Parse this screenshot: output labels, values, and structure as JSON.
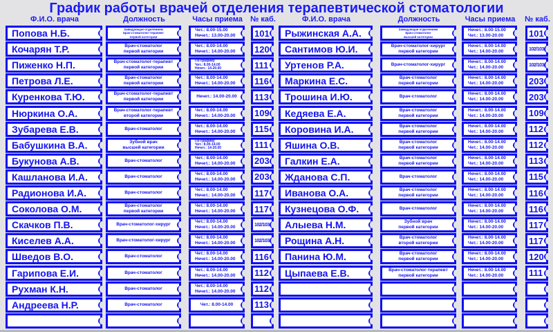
{
  "title": "График работы врачей отделения терапевтической стоматологии",
  "colors": {
    "accent": "#1010f0",
    "background": "#e3e3e6"
  },
  "headers": {
    "name": "Ф.И.О. врача",
    "position": "Должность",
    "hours": "Часы приема",
    "room": "№ каб."
  },
  "left": [
    {
      "name": "Попова Н.Б.",
      "position": [
        "Заведующая отделением",
        "врач-стоматолог-терапевт",
        "первой категории"
      ],
      "hours": [
        "Чет.: 8.00-15.00",
        "Нечет.: 13.00-20.00"
      ],
      "room": "101"
    },
    {
      "name": "Кочарян Т.Р.",
      "position": [
        "Врач-стоматолог",
        "первой категории"
      ],
      "hours": [
        "Чет.: 8.00-14.00",
        "Нечет.: 14.00-20.00"
      ],
      "room": "120"
    },
    {
      "name": "Пиженко Н.П.",
      "position": [
        "Врач-стоматолог-терапевт",
        "первой категории"
      ],
      "hours": [
        "По графику",
        "Чет.: 8.00-14.00",
        "Нечет.: 14-20.00"
      ],
      "room": "111"
    },
    {
      "name": "Петрова Л.Е.",
      "position": [
        "Врач-стоматолог",
        "первой категории"
      ],
      "hours": [
        "Чет.: 8.00-14.00",
        "Нечет.: 14.00-20.00"
      ],
      "room": "116"
    },
    {
      "name": "Куренкова Т.Ю.",
      "position": [
        "Врач-стоматолог-терапевт",
        "первой категории"
      ],
      "hours": [
        "Нечет.: 14.00-20.00"
      ],
      "room": "113"
    },
    {
      "name": "Нюркина О.А.",
      "position": [
        "Врач-стоматолог-терапевт",
        "второй категории"
      ],
      "hours": [
        "Чет.: 8.00-14.00",
        "Нечет.: 14.00-20.00"
      ],
      "room": "109"
    },
    {
      "name": "Зубарева Е.В.",
      "position": [
        "Врач-стоматолог"
      ],
      "hours": [
        "Чет.: 8.00-14.00",
        "Нечет.: 14.00-20.00"
      ],
      "room": "115"
    },
    {
      "name": "Бабушкина В.А.",
      "position": [
        "Зубной врач",
        "высшей категории"
      ],
      "hours": [
        "По графику",
        "Чет.: 8.00-14.00",
        "Нечет.: 14-20.00"
      ],
      "room": "111"
    },
    {
      "name": "Букунова А.В.",
      "position": [
        "Врач-стоматолог"
      ],
      "hours": [
        "Чет.: 8.00-14.00",
        "Нечет.: 14.00-20.00"
      ],
      "room": "203"
    },
    {
      "name": "Кашланова И.А.",
      "position": [
        "Врач-стоматолог"
      ],
      "hours": [
        "Чет.: 8.00-14.00",
        "Нечет.: 14.00-20.00"
      ],
      "room": "203"
    },
    {
      "name": "Радионова И.А.",
      "position": [
        "Врач-стоматолог"
      ],
      "hours": [
        "Чет.: 8.00-14.00",
        "Нечет.: 14.00-20.00"
      ],
      "room": "117"
    },
    {
      "name": "Соколова О.М.",
      "position": [
        "Врач-стоматолог",
        "первой категории"
      ],
      "hours": [
        "Чет.: 8.00-14.00",
        "Нечет.: 14.00-20.00"
      ],
      "room": "117"
    },
    {
      "name": "Скачков П.В.",
      "position": [
        "Врач-стоматолог-хирург"
      ],
      "hours": [
        "Чет.: 8.00-14.00",
        "Нечет.: 14.00-20.00"
      ],
      "room": "102/103"
    },
    {
      "name": "Киселев А.А.",
      "position": [
        "Врач-стоматолог-хирург"
      ],
      "hours": [
        "Чет.: 8.00-14.00",
        "Нечет.: 14.00-20.00"
      ],
      "room": "102/103"
    },
    {
      "name": "Шведов В.О.",
      "position": [
        "Врач-стоматолог"
      ],
      "hours": [
        "Чет.: 8.00-14.00",
        "Нечет.: 14.00-20.00"
      ],
      "room": "116"
    },
    {
      "name": "Гарипова Е.И.",
      "position": [
        "Врач-стоматолог"
      ],
      "hours": [
        "Чет.: 8.00-14.00",
        "Нечет.: 14.00-20.00"
      ],
      "room": "112"
    },
    {
      "name": "Рухман К.Н.",
      "position": [
        "Врач-стоматолог"
      ],
      "hours": [
        "Чет.: 8.00-14.00",
        "Нечет.: 14.00-20.00"
      ],
      "room": "112"
    },
    {
      "name": "Андреева Н.Р.",
      "position": [
        "Врач-стоматолог"
      ],
      "hours": [
        "Чет.: 8.00-14.00"
      ],
      "room": "113"
    },
    {
      "name": "",
      "position": [],
      "hours": [],
      "room": ""
    }
  ],
  "right": [
    {
      "name": "Рыжинская А.А.",
      "position": [
        "Заведующая отделением",
        "врач-стоматолог",
        "высшей категории"
      ],
      "hours": [
        "Нечет.: 8.00-15.00",
        "Чет.: 13.00-20.00"
      ],
      "room": "101"
    },
    {
      "name": "Сантимов Ю.И.",
      "position": [
        "Врач-стоматолог-хирург",
        "первой категории"
      ],
      "hours": [
        "Нечет.: 8.00-14.00",
        "Чет.: 14.00-20.00"
      ],
      "room": "102/103"
    },
    {
      "name": "Уртенов Р.А.",
      "position": [
        "Врач-стоматолог-хирург"
      ],
      "hours": [
        "Нечет.: 8.00-14.00",
        "Чет.: 14.00-20.00"
      ],
      "room": "102/103"
    },
    {
      "name": "Маркина Е.С.",
      "position": [
        "Врач-стоматолог",
        "первой категории"
      ],
      "hours": [
        "Нечет.: 8.00-14.00",
        "Чет.: 14.00-20.00"
      ],
      "room": "203"
    },
    {
      "name": "Трошина И.Ю.",
      "position": [
        "Врач-стоматолог"
      ],
      "hours": [
        "Нечет.: 8.00-14.00",
        "Чет.: 14.00-20.00"
      ],
      "room": "203"
    },
    {
      "name": "Кедяева Е.А.",
      "position": [
        "Врач-стоматолог",
        "первой категории"
      ],
      "hours": [
        "Нечет.: 8.00-14.00",
        "Чет.: 14.00-20.00"
      ],
      "room": "109"
    },
    {
      "name": "Коровина И.А.",
      "position": [
        "Врач-стоматолог",
        "первой категории"
      ],
      "hours": [
        "Нечет.: 8.00-14.00",
        "Чет.: 14.00-20.00"
      ],
      "room": "112"
    },
    {
      "name": "Яшина О.В.",
      "position": [
        "Врач-стоматолог",
        "первой категории"
      ],
      "hours": [
        "Нечет.: 8.00-14.00",
        "Чет.: 14.00-20.00"
      ],
      "room": "112"
    },
    {
      "name": "Галкин Е.А.",
      "position": [
        "Врач-стоматолог",
        "первой категории"
      ],
      "hours": [
        "Нечет.: 8.00-14.00",
        "Чет.: 14.00-20.00"
      ],
      "room": "113"
    },
    {
      "name": "Жданова С.П.",
      "position": [
        "Врач-стоматолог"
      ],
      "hours": [
        "Нечет.: 8.00-14.00",
        "Чет.: 14.00-20.00"
      ],
      "room": "115"
    },
    {
      "name": "Иванова О.А.",
      "position": [
        "Врач-стоматолог",
        "первой категории"
      ],
      "hours": [
        "Нечет.: 8.00-14.00",
        "Чет.: 14.00-20.00"
      ],
      "room": "116"
    },
    {
      "name": "Кузнецова О.Ф.",
      "position": [
        "Врач-стоматолог"
      ],
      "hours": [
        "Нечет.: 8.00-14.00",
        "Чет.: 14.00-20.00"
      ],
      "room": "116"
    },
    {
      "name": "Алыева Н.М.",
      "position": [
        "Зубной врач",
        "первой категории"
      ],
      "hours": [
        "Нечет.: 8.00-14.00",
        "Чет.: 14.00-20.00"
      ],
      "room": "117"
    },
    {
      "name": "Рощина А.Н.",
      "position": [
        "Врач-стоматолог",
        "второй категории"
      ],
      "hours": [
        "Нечет.: 8.00-14.00",
        "Чет.: 14.00-20.00"
      ],
      "room": "117"
    },
    {
      "name": "Панина Ю.М.",
      "position": [
        "Врач-стоматолог",
        "первой категории"
      ],
      "hours": [
        "Нечет.: 8.00-14.00",
        "Чет.: 14.00-20.00"
      ],
      "room": "120"
    },
    {
      "name": "Цыпаева Е.В.",
      "position": [
        "Врач-стоматолог-терапевт",
        "первой категории"
      ],
      "hours": [
        "Нечет.: 8.00-14.00",
        "Чет.: 14.00-20.00"
      ],
      "room": "111"
    },
    {
      "name": "",
      "position": [],
      "hours": [],
      "room": ""
    },
    {
      "name": "",
      "position": [],
      "hours": [],
      "room": ""
    },
    {
      "name": "",
      "position": [],
      "hours": [],
      "room": ""
    }
  ]
}
